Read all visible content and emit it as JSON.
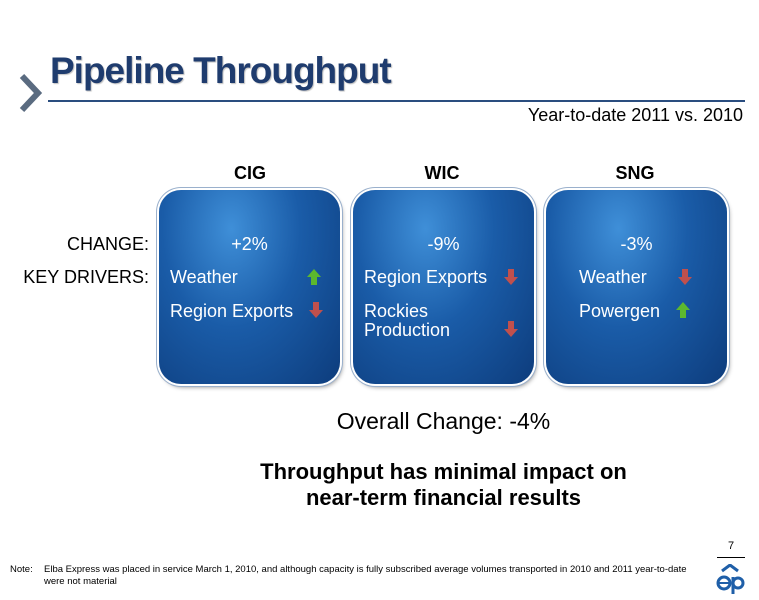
{
  "slide": {
    "title": "Pipeline Throughput",
    "subtitle": "Year-to-date 2011 vs. 2010",
    "change_label": "CHANGE:",
    "drivers_label": "KEY DRIVERS:",
    "overall": "Overall Change: -4%",
    "message_line1": "Throughput has minimal impact on",
    "message_line2": "near-term financial results",
    "page_number": "7",
    "note_label": "Note:",
    "note_text": "Elba Express was placed in service March 1, 2010, and although capacity is fully subscribed average volumes transported in 2010 and 2011 year-to-date were not material"
  },
  "colors": {
    "title": "#1f3c6e",
    "card": "#1a5ca8",
    "up_arrow": "#5cb82e",
    "down_arrow": "#c0504d"
  },
  "columns": [
    {
      "name": "CIG",
      "change": "+2%",
      "drivers": [
        {
          "label": "Weather",
          "direction": "up"
        },
        {
          "label": "Region Exports",
          "direction": "down"
        }
      ]
    },
    {
      "name": "WIC",
      "change": "-9%",
      "drivers": [
        {
          "label": "Region Exports",
          "direction": "down"
        },
        {
          "label": "Rockies",
          "label2": "Production",
          "direction": "down"
        }
      ]
    },
    {
      "name": "SNG",
      "change": "-3%",
      "drivers": [
        {
          "label": "Weather",
          "direction": "down"
        },
        {
          "label": "Powergen",
          "direction": "up"
        }
      ]
    }
  ]
}
